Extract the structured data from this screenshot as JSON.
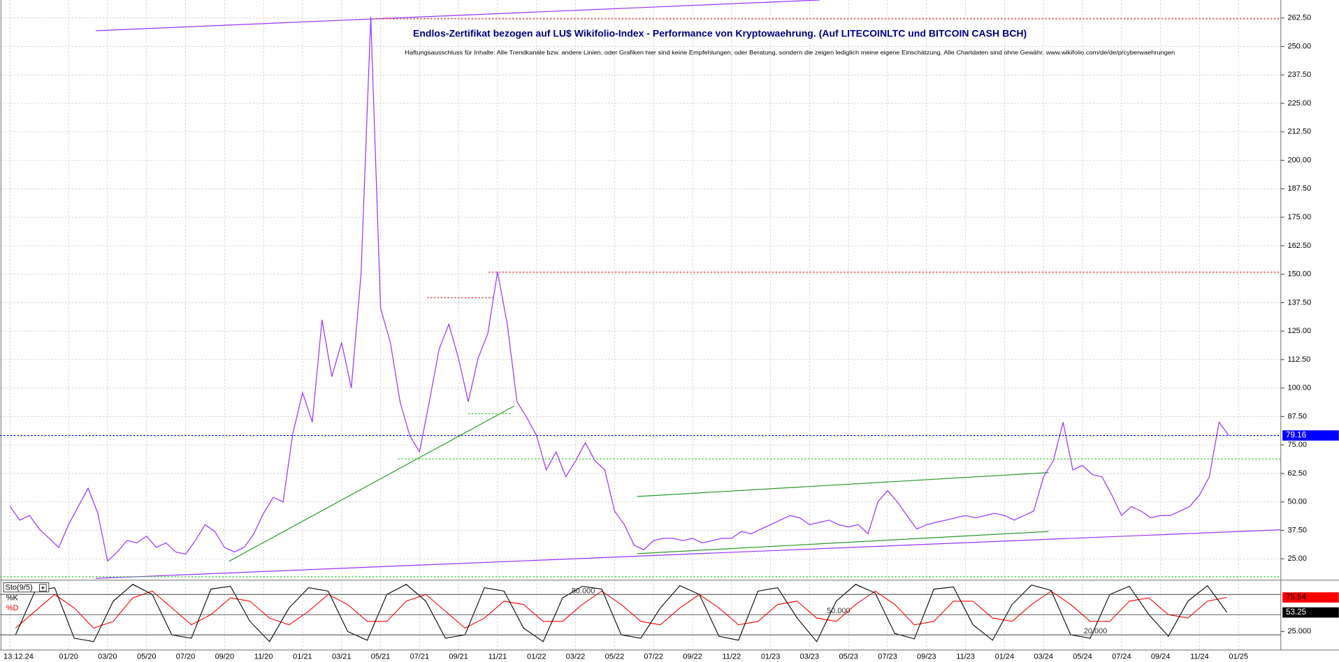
{
  "chart_data": [
    {
      "type": "line",
      "title": "Endlos-Zertifikat bezogen auf LU$ Wikifolio-Index - Performance von Kryptowaehrung. (Auf LITECOINLTC und BITCOIN CASH BCH)",
      "subtitle": "Haftungsausschluss für Inhalte: Alle Trendkanäle bzw. andere Linien, oder Grafiken hier sind keine Empfehlungen, oder Beratung, sondern die zeigen lediglich meine eigene Einschätzung. Alle Chartdaten sind ohne Gewähr.  www.wikifolio.com/de/de/p/cyberwaehrungen",
      "categories": [
        "13.12.24",
        null,
        null,
        null,
        null,
        null,
        "01/20",
        null,
        null,
        null,
        "03/20",
        null,
        null,
        null,
        "05/20",
        null,
        null,
        null,
        "07/20",
        null,
        null,
        null,
        "09/20",
        null,
        null,
        null,
        "11/20",
        null,
        null,
        null,
        "01/21",
        null,
        null,
        null,
        "03/21",
        null,
        null,
        null,
        "05/21",
        null,
        null,
        null,
        "07/21",
        null,
        null,
        null,
        "09/21",
        null,
        null,
        null,
        "11/21",
        null,
        null,
        null,
        "01/22",
        null,
        null,
        null,
        "03/22",
        null,
        null,
        null,
        "05/22",
        null,
        null,
        null,
        "07/22",
        null,
        null,
        null,
        "09/22",
        null,
        null,
        null,
        "11/22",
        null,
        null,
        null,
        "01/23",
        null,
        null,
        null,
        "03/23",
        null,
        null,
        null,
        "05/23",
        null,
        null,
        null,
        "07/23",
        null,
        null,
        null,
        "09/23",
        null,
        null,
        null,
        "11/23",
        null,
        null,
        null,
        "01/24",
        null,
        null,
        null,
        "03/24",
        null,
        null,
        null,
        "05/24",
        null,
        null,
        null,
        "07/24",
        null,
        null,
        null,
        "09/24",
        null,
        null,
        null,
        "11/24",
        null,
        null,
        null,
        "01/25"
      ],
      "series": [
        {
          "color": "#9933ff",
          "values": [
            48,
            42,
            44,
            38,
            34,
            30,
            40,
            48,
            56,
            45,
            24,
            28,
            33,
            32,
            35,
            30,
            32,
            28,
            27,
            33,
            40,
            37,
            30,
            28,
            30,
            36,
            45,
            52,
            50,
            80,
            98,
            85,
            130,
            105,
            120,
            100,
            150,
            263,
            135,
            120,
            94,
            79,
            72,
            94,
            117,
            128,
            113,
            94,
            113,
            124,
            151,
            128,
            94,
            87,
            79,
            64,
            72,
            61,
            68,
            76,
            68,
            64,
            46,
            40,
            31,
            29,
            33,
            34,
            34,
            33,
            34,
            32,
            33,
            34,
            34,
            37,
            36,
            38,
            40,
            42,
            44,
            43,
            40,
            41,
            42,
            40,
            39,
            40,
            36,
            50,
            55,
            50,
            44,
            38,
            40,
            41,
            42,
            43,
            44,
            43,
            44,
            45,
            44,
            42,
            44,
            46,
            61,
            68,
            85,
            64,
            66,
            62,
            61,
            53,
            44,
            48,
            46,
            43,
            44,
            44,
            46,
            48,
            53,
            61,
            85,
            79.16,
            null
          ]
        }
      ],
      "ylim": [
        16.4,
        270.4
      ],
      "yticks": [
        {
          "value": 25,
          "label": "25.00"
        },
        {
          "value": 37.5,
          "label": "37.50"
        },
        {
          "value": 50,
          "label": "50.00"
        },
        {
          "value": 62.5,
          "label": "62.50"
        },
        {
          "value": 75,
          "label": "75.00"
        },
        {
          "value": 87.5,
          "label": "87.50"
        },
        {
          "value": 100,
          "label": "100.00"
        },
        {
          "value": 112.5,
          "label": "112.50"
        },
        {
          "value": 125,
          "label": "125.00"
        },
        {
          "value": 137.5,
          "label": "137.50"
        },
        {
          "value": 150,
          "label": "150.00"
        },
        {
          "value": 162.5,
          "label": "162.50"
        },
        {
          "value": 175,
          "label": "175.00"
        },
        {
          "value": 187.5,
          "label": "187.50"
        },
        {
          "value": 200,
          "label": "200.00"
        },
        {
          "value": 212.5,
          "label": "212.50"
        },
        {
          "value": 225,
          "label": "225.00"
        },
        {
          "value": 237.5,
          "label": "237.50"
        },
        {
          "value": 250,
          "label": "250.00"
        },
        {
          "value": 262.5,
          "label": "262.50"
        }
      ],
      "grid": true
    },
    {
      "type": "line",
      "title": "Sto(9/5)",
      "series": [
        {
          "name": "%K",
          "color": "#000000",
          "values": [
            20,
            85,
            90,
            15,
            10,
            70,
            95,
            80,
            20,
            15,
            88,
            92,
            40,
            10,
            60,
            90,
            85,
            25,
            12,
            80,
            95,
            70,
            15,
            20,
            90,
            85,
            30,
            10,
            75,
            92,
            88,
            20,
            15,
            60,
            93,
            80,
            18,
            12,
            85,
            90,
            45,
            10,
            70,
            95,
            82,
            22,
            14,
            88,
            91,
            35,
            12,
            65,
            94,
            86,
            20,
            15,
            80,
            92,
            50,
            18,
            70,
            93,
            53.25
          ]
        },
        {
          "name": "%D",
          "color": "#ff0000",
          "values": [
            30,
            55,
            80,
            60,
            30,
            40,
            75,
            85,
            60,
            35,
            50,
            75,
            70,
            45,
            35,
            55,
            80,
            65,
            40,
            40,
            70,
            80,
            55,
            30,
            45,
            70,
            65,
            40,
            40,
            65,
            85,
            65,
            40,
            35,
            60,
            80,
            60,
            35,
            40,
            65,
            70,
            45,
            40,
            65,
            85,
            65,
            35,
            40,
            70,
            70,
            45,
            40,
            65,
            85,
            65,
            40,
            40,
            70,
            75,
            50,
            45,
            70,
            75.54
          ]
        }
      ],
      "levels": [
        {
          "value": 80,
          "label": "80.000"
        },
        {
          "value": 50,
          "label": "50.000"
        },
        {
          "value": 20,
          "label": "20.000"
        }
      ],
      "ylim": [
        0,
        100
      ],
      "yticks": [
        {
          "value": 25,
          "label": "25.000"
        }
      ]
    }
  ]
}
